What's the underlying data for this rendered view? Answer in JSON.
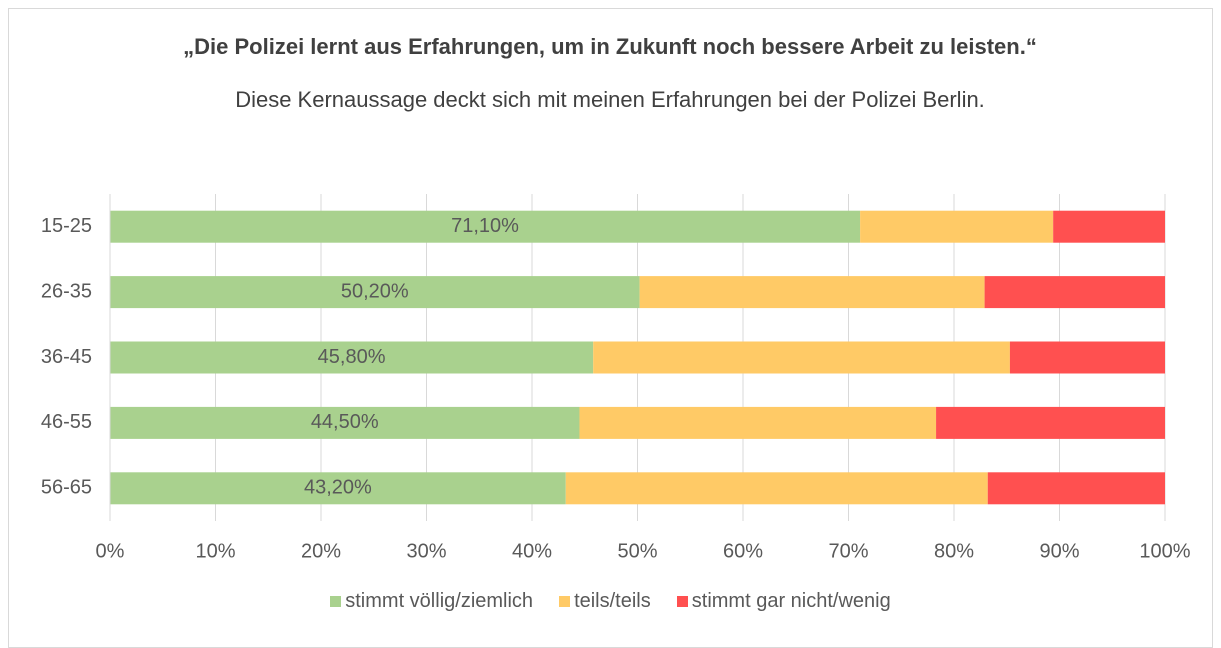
{
  "chart_data": {
    "type": "stacked_barh",
    "title": "„Die Polizei lernt aus Erfahrungen, um in Zukunft noch bessere Arbeit zu leisten.“",
    "subtitle": "Diese Kernaussage deckt sich mit meinen Erfahrungen bei der Polizei Berlin.",
    "categories": [
      "15-25",
      "26-35",
      "36-45",
      "46-55",
      "56-65"
    ],
    "series": [
      {
        "name": "stimmt völlig/ziemlich",
        "color": "#a9d18e",
        "values": [
          71.1,
          50.2,
          45.8,
          44.5,
          43.2
        ],
        "value_labels": [
          "71,10%",
          "50,20%",
          "45,80%",
          "44,50%",
          "43,20%"
        ]
      },
      {
        "name": "teils/teils",
        "color": "#ffca66",
        "values": [
          18.3,
          32.7,
          39.5,
          33.8,
          40.0
        ]
      },
      {
        "name": "stimmt gar nicht/wenig",
        "color": "#ff5050",
        "values": [
          10.6,
          17.1,
          14.7,
          21.7,
          16.8
        ]
      }
    ],
    "xlim": [
      0,
      100
    ],
    "xticks": [
      {
        "value": 0,
        "label": "0%"
      },
      {
        "value": 10,
        "label": "10%"
      },
      {
        "value": 20,
        "label": "20%"
      },
      {
        "value": 30,
        "label": "30%"
      },
      {
        "value": 40,
        "label": "40%"
      },
      {
        "value": 50,
        "label": "50%"
      },
      {
        "value": 60,
        "label": "60%"
      },
      {
        "value": 70,
        "label": "70%"
      },
      {
        "value": 80,
        "label": "80%"
      },
      {
        "value": 90,
        "label": "90%"
      },
      {
        "value": 100,
        "label": "100%"
      }
    ],
    "grid": true,
    "legend": "bottom"
  }
}
